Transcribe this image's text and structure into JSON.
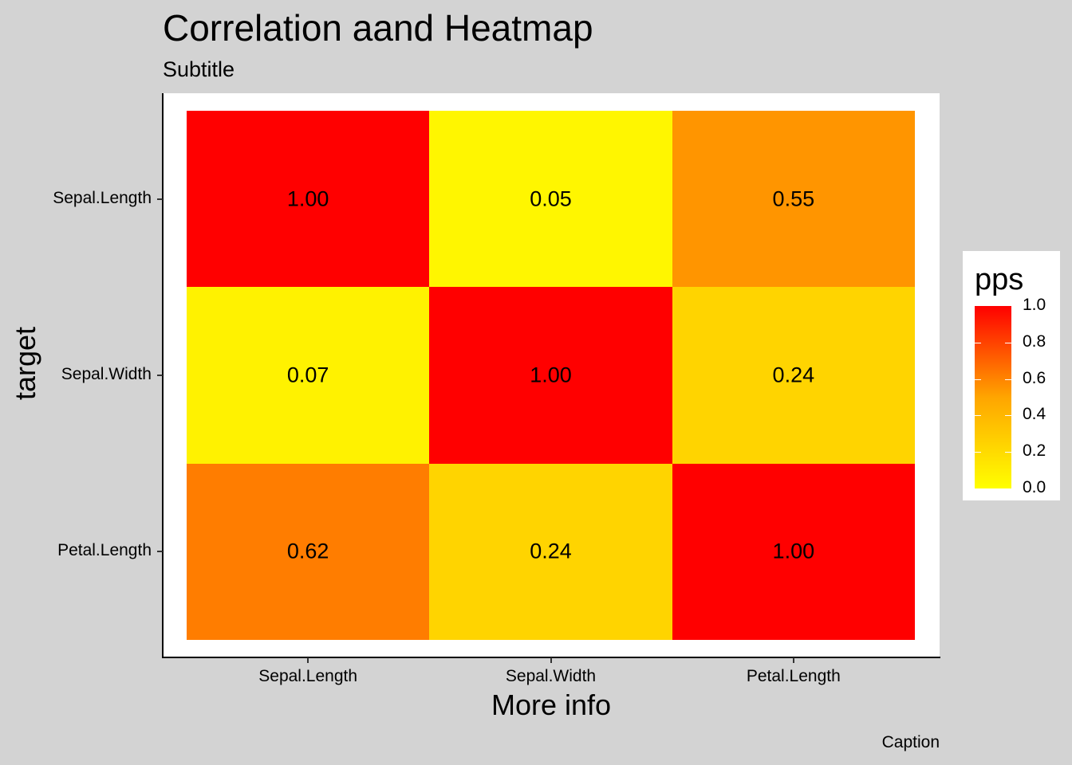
{
  "chart_data": {
    "type": "heatmap",
    "title": "Correlation aand Heatmap",
    "subtitle": "Subtitle",
    "caption": "Caption",
    "xlabel": "More info",
    "ylabel": "target",
    "x_categories": [
      "Sepal.Length",
      "Sepal.Width",
      "Petal.Length"
    ],
    "y_categories": [
      "Sepal.Length",
      "Sepal.Width",
      "Petal.Length"
    ],
    "values": [
      [
        1.0,
        0.05,
        0.55
      ],
      [
        0.07,
        1.0,
        0.24
      ],
      [
        0.62,
        0.24,
        1.0
      ]
    ],
    "value_labels": [
      [
        "1.00",
        "0.05",
        "0.55"
      ],
      [
        "0.07",
        "1.00",
        "0.24"
      ],
      [
        "0.62",
        "0.24",
        "1.00"
      ]
    ],
    "legend": {
      "title": "pps",
      "ticks": [
        "0.0",
        "0.2",
        "0.4",
        "0.6",
        "0.8",
        "1.0"
      ],
      "range": [
        0,
        1
      ],
      "colors": {
        "low": "#ffff00",
        "mid": "#ffa500",
        "high": "#ff0000"
      },
      "placement": "right"
    },
    "grid": false
  }
}
